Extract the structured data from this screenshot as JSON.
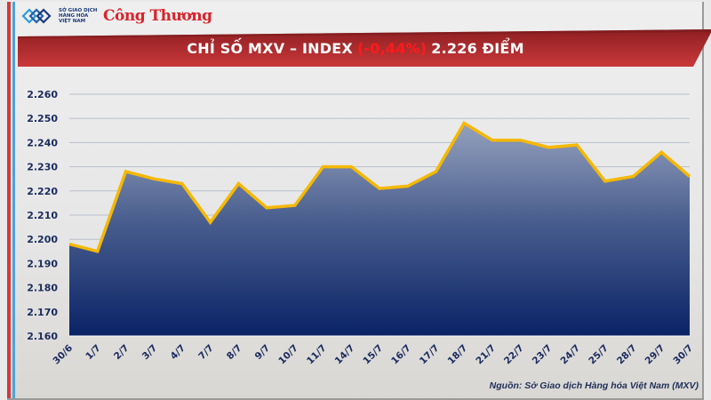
{
  "header": {
    "logo_mxv_text": [
      "SỞ GIAO DỊCH",
      "HÀNG HÓA",
      "VIỆT NAM"
    ],
    "logo_congthuong": "Công Thương"
  },
  "title": {
    "prefix": "CHỈ SỐ MXV – INDEX",
    "change": "(-0,44%)",
    "value": "2.226 ĐIỂM"
  },
  "source": "Nguồn: Sở Giao dịch Hàng hóa Việt Nam (MXV)",
  "colors": {
    "banner": "#b3262a",
    "line": "#f5b800",
    "area_top": "#6f7fa3",
    "area_bottom": "#0a2366",
    "axis_text": "#1a2a5e",
    "negative": "#ff1a1a"
  },
  "chart_data": {
    "type": "area",
    "title": "CHỈ SỐ MXV – INDEX (-0,44%) 2.226 ĐIỂM",
    "xlabel": "",
    "ylabel": "",
    "ylim": [
      2160,
      2260
    ],
    "yticks": [
      "2.160",
      "2.170",
      "2.180",
      "2.190",
      "2.200",
      "2.210",
      "2.220",
      "2.230",
      "2.240",
      "2.250",
      "2.260"
    ],
    "grid": true,
    "legend": "none",
    "categories": [
      "30/6",
      "1/7",
      "2/7",
      "3/7",
      "4/7",
      "7/7",
      "8/7",
      "9/7",
      "10/7",
      "11/7",
      "14/7",
      "15/7",
      "16/7",
      "17/7",
      "18/7",
      "21/7",
      "22/7",
      "23/7",
      "24/7",
      "25/7",
      "28/7",
      "29/7",
      "30/7"
    ],
    "series": [
      {
        "name": "MXV-Index",
        "values": [
          2198,
          2195,
          2228,
          2225,
          2223,
          2207,
          2223,
          2213,
          2214,
          2230,
          2230,
          2221,
          2222,
          2228,
          2248,
          2241,
          2241,
          2238,
          2239,
          2224,
          2226,
          2236,
          2226
        ]
      }
    ]
  }
}
